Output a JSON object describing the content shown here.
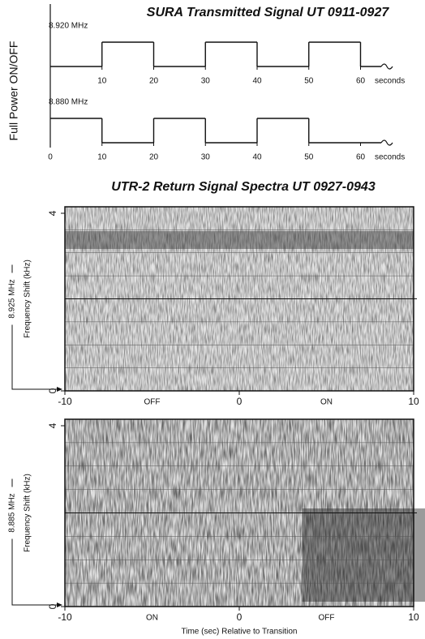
{
  "chart_data": [
    {
      "type": "step",
      "title": "SURA Transmitted Signal   UT 0911-0927",
      "ylabel": "Full Power ON/OFF",
      "xunit": "seconds",
      "xlim": [
        0,
        64
      ],
      "ylim": [
        0,
        1
      ],
      "color": "#111111",
      "series": [
        {
          "name": "8.920 MHz",
          "x": [
            0,
            10,
            20,
            30,
            40,
            50,
            60
          ],
          "values": [
            0,
            1,
            0,
            1,
            0,
            1,
            0
          ],
          "xticks": [
            10,
            20,
            30,
            40,
            50,
            60
          ]
        },
        {
          "name": "8.880 MHz",
          "x": [
            0,
            10,
            20,
            30,
            40,
            50,
            60
          ],
          "values": [
            1,
            0,
            1,
            0,
            1,
            0,
            0
          ],
          "xticks": [
            0,
            10,
            20,
            30,
            40,
            50,
            60
          ]
        }
      ]
    },
    {
      "type": "spectrogram",
      "title": "UTR-2 Return Signal Spectra   UT 0927-0943",
      "ylabel": "Frequency Shift (kHz)",
      "side_label": "8.925 MHz",
      "xlim": [
        -10,
        10
      ],
      "ylim": [
        0,
        4
      ],
      "xticks": [
        -10,
        0,
        10
      ],
      "yticks": [
        0,
        4
      ],
      "annotations": [
        {
          "text": "OFF",
          "x": -5
        },
        {
          "text": "ON",
          "x": 5
        }
      ]
    },
    {
      "type": "spectrogram",
      "ylabel": "Frequency Shift (kHz)",
      "side_label": "8.885 MHz",
      "xlabel": "Time (sec) Relative to Transition",
      "xlim": [
        -10,
        10
      ],
      "ylim": [
        0,
        4
      ],
      "xticks": [
        -10,
        0,
        10
      ],
      "yticks": [
        0,
        4
      ],
      "annotations": [
        {
          "text": "ON",
          "x": -5
        },
        {
          "text": "OFF",
          "x": 5
        }
      ]
    }
  ]
}
